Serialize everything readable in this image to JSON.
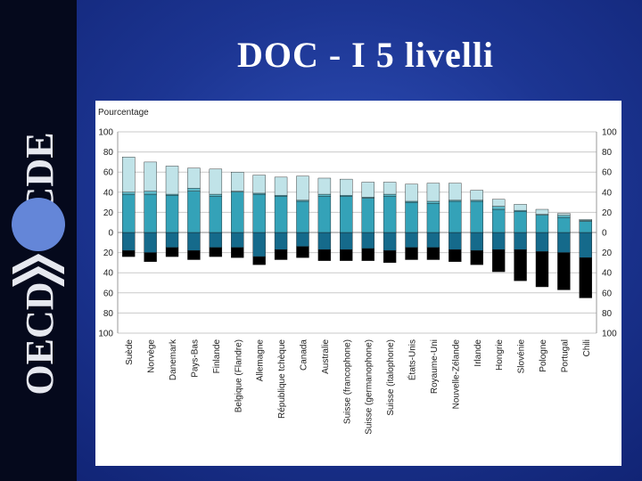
{
  "slide": {
    "title": "DOC - I 5 livelli"
  },
  "logo": {
    "text": "OECD OCDE"
  },
  "colors": {
    "level1": "#000000",
    "level2": "#156a8b",
    "level3": "#34a2b8",
    "level4": "#5eb9c8",
    "level5": "#c0e3e8",
    "background": "#1c3592"
  },
  "chart_data": {
    "type": "bar",
    "stacked": true,
    "diverging": true,
    "ylabel": "Pourcentage",
    "ylim": [
      -100,
      100
    ],
    "yticks": [
      "100",
      "80",
      "60",
      "40",
      "20",
      "0",
      "20",
      "40",
      "60",
      "80",
      "100"
    ],
    "grid": true,
    "categories": [
      "Suède",
      "Norvège",
      "Danemark",
      "Pays-Bas",
      "Finlande",
      "Belgique (Flandre)",
      "Allemagne",
      "République tchèque",
      "Canada",
      "Australie",
      "Suisse (francophone)",
      "Suisse (germanophone)",
      "Suisse (italophone)",
      "États-Unis",
      "Royaume-Uni",
      "Nouvelle-Zélande",
      "Irlande",
      "Hongrie",
      "Slovénie",
      "Pologne",
      "Portugal",
      "Chili"
    ],
    "series": [
      {
        "direction": "below",
        "values": [
          6,
          9,
          9,
          9,
          9,
          10,
          8,
          10,
          11,
          11,
          11,
          12,
          12,
          12,
          12,
          12,
          14,
          22,
          31,
          35,
          37,
          40
        ]
      },
      {
        "direction": "below",
        "values": [
          18,
          20,
          15,
          18,
          15,
          15,
          24,
          17,
          14,
          17,
          17,
          16,
          18,
          15,
          15,
          17,
          18,
          17,
          17,
          19,
          20,
          25
        ]
      },
      {
        "direction": "above",
        "values": [
          38,
          38,
          37,
          41,
          36,
          40,
          38,
          36,
          31,
          36,
          36,
          34,
          36,
          30,
          29,
          31,
          31,
          23,
          21,
          17,
          15,
          11
        ]
      },
      {
        "direction": "above",
        "values": [
          2,
          3,
          1,
          3,
          2,
          1,
          1,
          1,
          1,
          2,
          1,
          1,
          2,
          1,
          2,
          1,
          1,
          3,
          1,
          1,
          2,
          1
        ]
      },
      {
        "direction": "above",
        "values": [
          35,
          29,
          28,
          20,
          25,
          19,
          18,
          18,
          24,
          16,
          16,
          15,
          12,
          17,
          18,
          17,
          10,
          7,
          6,
          5,
          2,
          1
        ]
      }
    ]
  }
}
